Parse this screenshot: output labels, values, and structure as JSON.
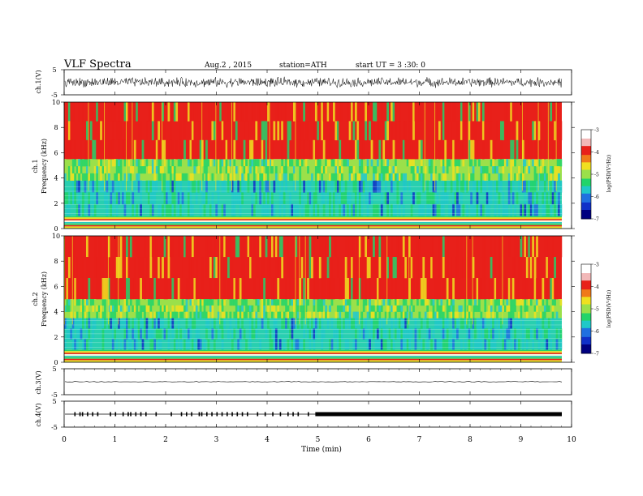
{
  "header": {
    "title": "VLF Spectra",
    "date": "Aug.2 , 2015",
    "station": "station=ATH",
    "start": "start UT = 3 :30: 0"
  },
  "colors": {
    "background": "#ffffff",
    "spectrogram_high": "#e8201a",
    "spectrogram_mid": "#f0e020",
    "spectrogram_low": "#22d46a",
    "spectrogram_min": "#1030c8"
  },
  "chart_data": [
    {
      "type": "line",
      "panel": "ch1-waveform",
      "ylabel": "ch.1(V)",
      "ylim": [
        -5,
        5
      ],
      "yticks": [
        "5",
        "-5"
      ],
      "xlim": [
        0,
        10
      ],
      "note_values": "dense noise waveform, roughly ±1.5 V about 0",
      "series": [
        {
          "values_summary": {
            "mean": 0,
            "amplitude": 1.5
          }
        }
      ]
    },
    {
      "type": "heatmap",
      "panel": "ch1-spectrogram",
      "ylabel": "Frequency (kHz)",
      "channel_label": "ch.1",
      "ylim": [
        0,
        10
      ],
      "yticks": [
        "0",
        "2",
        "4",
        "6",
        "8",
        "10"
      ],
      "xlim": [
        0,
        9.8
      ],
      "bands": [
        {
          "from_khz": 0,
          "to_khz": 1.0,
          "level": "striped"
        },
        {
          "from_khz": 1.0,
          "to_khz": 3.8,
          "level": "low"
        },
        {
          "from_khz": 3.8,
          "to_khz": 5.5,
          "level": "mid"
        },
        {
          "from_khz": 5.5,
          "to_khz": 10,
          "level": "high"
        }
      ],
      "colorbar": {
        "label": "log(PSD(V²/Hz)",
        "range": [
          -7,
          -3
        ],
        "ticks": [
          "-3",
          "-4",
          "-5",
          "-6",
          "-7"
        ]
      }
    },
    {
      "type": "heatmap",
      "panel": "ch2-spectrogram",
      "ylabel": "Frequency (kHz)",
      "channel_label": "ch.2",
      "ylim": [
        0,
        10
      ],
      "yticks": [
        "0",
        "2",
        "4",
        "6",
        "8",
        "10"
      ],
      "xlim": [
        0,
        9.8
      ],
      "bands": [
        {
          "from_khz": 0,
          "to_khz": 1.0,
          "level": "striped"
        },
        {
          "from_khz": 1.0,
          "to_khz": 3.5,
          "level": "low"
        },
        {
          "from_khz": 3.5,
          "to_khz": 5.0,
          "level": "mid"
        },
        {
          "from_khz": 5.0,
          "to_khz": 10,
          "level": "high"
        }
      ],
      "colorbar": {
        "label": "log(PSD(V²/Hz)",
        "range": [
          -7,
          -3
        ],
        "ticks": [
          "-3",
          "-4",
          "-5",
          "-6",
          "-7"
        ]
      }
    },
    {
      "type": "line",
      "panel": "ch3-waveform",
      "ylabel": "ch.3(V)",
      "ylim": [
        -5,
        5
      ],
      "yticks": [
        "5",
        "-5"
      ],
      "xlim": [
        0,
        9.8
      ],
      "series": [
        {
          "values_summary": {
            "mean": 0,
            "amplitude": 0.05
          }
        }
      ]
    },
    {
      "type": "line",
      "panel": "ch4-waveform",
      "ylabel": "ch.4(V)",
      "ylim": [
        -5,
        5
      ],
      "yticks": [
        "5",
        "-5"
      ],
      "xlim": [
        0,
        9.8
      ],
      "pulses_min": [
        0.2,
        0.3,
        0.35,
        0.45,
        0.55,
        0.65,
        0.9,
        1.0,
        1.15,
        1.25,
        1.3,
        1.4,
        1.5,
        1.6,
        1.8,
        2.1,
        2.3,
        2.4,
        2.5,
        2.65,
        2.7,
        2.8,
        2.9,
        3.0,
        3.1,
        3.2,
        3.3,
        3.4,
        3.5,
        3.6,
        3.8,
        3.95,
        4.1,
        4.25,
        4.4,
        4.5,
        4.6,
        4.8
      ],
      "continuous_from_min": 4.95
    }
  ],
  "xaxis": {
    "label": "Time (min)",
    "ticks": [
      "0",
      "1",
      "2",
      "3",
      "4",
      "5",
      "6",
      "7",
      "8",
      "9",
      "10"
    ],
    "range": [
      0,
      10
    ]
  }
}
